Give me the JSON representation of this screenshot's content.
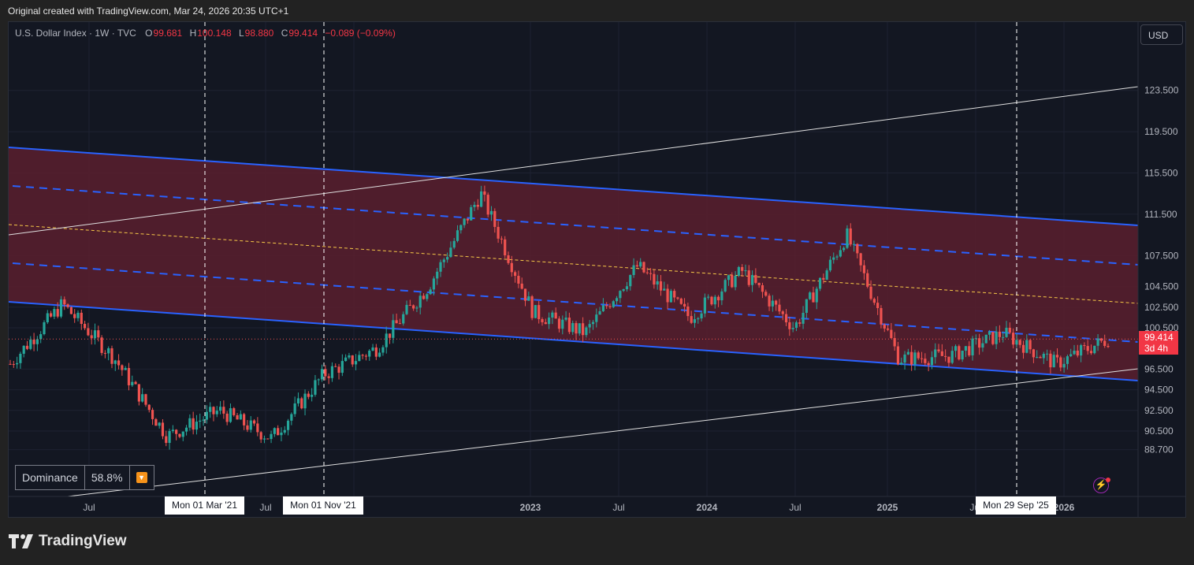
{
  "credit": "Original created with TradingView.com, Mar 24, 2026 20:35 UTC+1",
  "legend": {
    "title": "U.S. Dollar Index · 1W · TVC",
    "open_label": "O",
    "open": "99.681",
    "high_label": "H",
    "high": "100.148",
    "low_label": "L",
    "low": "98.880",
    "close_label": "C",
    "close": "99.414",
    "change": "−0.089 (−0.09%)"
  },
  "currency_button": "USD",
  "dominance": {
    "label": "Dominance",
    "value": "58.8%",
    "icon": "down-arrow-icon"
  },
  "price_tag": {
    "price": "99.414",
    "countdown": "3d 4h"
  },
  "crosshair_dates": [
    "Mon 01 Mar '21",
    "Mon 01 Nov '21",
    "Mon 29 Sep '25"
  ],
  "logo_text": "TradingView",
  "colors": {
    "up": "#26a69a",
    "down": "#ef5350",
    "channel_fill": "#5a1f2e",
    "channel_line": "#2962ff",
    "midline": "#f7c948",
    "background": "#131722"
  },
  "chart_data": {
    "type": "candlestick",
    "title": "U.S. Dollar Index",
    "interval": "1W",
    "ylim": [
      87.9,
      125.9
    ],
    "y_ticks": [
      "123.500",
      "119.500",
      "115.500",
      "111.500",
      "107.500",
      "104.500",
      "102.500",
      "100.500",
      "96.500",
      "94.500",
      "92.500",
      "90.500",
      "88.700"
    ],
    "x_ticks": [
      "Jul",
      "Jul",
      "Jul",
      "2023",
      "Jul",
      "2024",
      "Jul",
      "2025",
      "Jul",
      "2026"
    ],
    "last_price": 99.414,
    "grid": true,
    "series": [
      {
        "period": "2020 Jan",
        "close": 97.0
      },
      {
        "period": "2020 Mar",
        "close": 102.8
      },
      {
        "period": "2020 Jun",
        "close": 97.5
      },
      {
        "period": "2020 Dec",
        "close": 90.0
      },
      {
        "period": "2021 Mar",
        "close": 92.5
      },
      {
        "period": "2021 May",
        "close": 89.8
      },
      {
        "period": "2021 Nov",
        "close": 96.0
      },
      {
        "period": "2022 Mar",
        "close": 98.5
      },
      {
        "period": "2022 Jun",
        "close": 104.5
      },
      {
        "period": "2022 Sep",
        "close": 113.5
      },
      {
        "period": "2023 Jan",
        "close": 102.0
      },
      {
        "period": "2023 Jul",
        "close": 100.0
      },
      {
        "period": "2023 Oct",
        "close": 106.5
      },
      {
        "period": "2023 Dec",
        "close": 101.5
      },
      {
        "period": "2024 Apr",
        "close": 106.0
      },
      {
        "period": "2024 Sep",
        "close": 100.5
      },
      {
        "period": "2025 Jan",
        "close": 109.5
      },
      {
        "period": "2025 Jun",
        "close": 97.5
      },
      {
        "period": "2025 Sep",
        "close": 97.8
      },
      {
        "period": "2025 Nov",
        "close": 100.0
      },
      {
        "period": "2026 Feb",
        "close": 97.0
      },
      {
        "period": "2026 Mar",
        "close": 99.414
      }
    ]
  }
}
